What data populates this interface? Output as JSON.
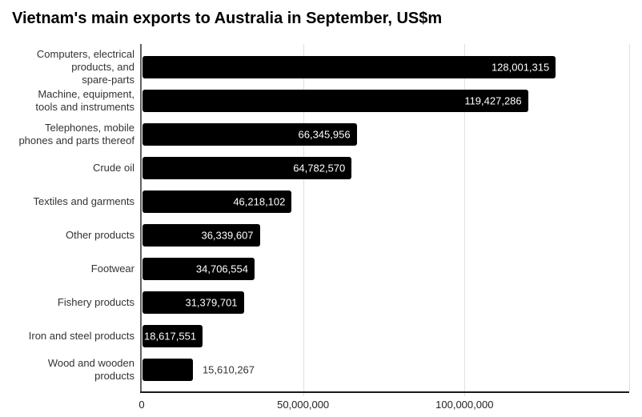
{
  "chart_data": {
    "type": "bar",
    "orientation": "horizontal",
    "title": "Vietnam's main exports to Australia in September, US$m",
    "categories": [
      "Computers, electrical products, and spare-parts",
      "Machine, equipment, tools and instruments",
      "Telephones, mobile phones and parts thereof",
      "Crude oil",
      "Textiles and garments",
      "Other products",
      "Footwear",
      "Fishery products",
      "Iron and steel products",
      "Wood and wooden products"
    ],
    "category_lines": [
      [
        "Computers, electrical",
        "products, and",
        "spare-parts"
      ],
      [
        "Machine, equipment,",
        "tools and instruments"
      ],
      [
        "Telephones, mobile",
        "phones and parts thereof"
      ],
      [
        "Crude oil"
      ],
      [
        "Textiles and garments"
      ],
      [
        "Other products"
      ],
      [
        "Footwear"
      ],
      [
        "Fishery products"
      ],
      [
        "Iron and steel products"
      ],
      [
        "Wood and wooden",
        "products"
      ]
    ],
    "values": [
      128001315,
      119427286,
      66345956,
      64782570,
      46218102,
      36339607,
      34706554,
      31379701,
      18617551,
      15610267
    ],
    "value_labels": [
      "128,001,315",
      "119,427,286",
      "66,345,956",
      "64,782,570",
      "46,218,102",
      "36,339,607",
      "34,706,554",
      "31,379,701",
      "18,617,551",
      "15,610,267"
    ],
    "value_label_position": [
      "inside",
      "inside",
      "inside",
      "inside",
      "inside",
      "inside",
      "inside",
      "inside",
      "inside",
      "outside"
    ],
    "xlabel": "",
    "ylabel": "",
    "xlim": [
      0,
      151000000
    ],
    "xticks": [
      {
        "value": 0,
        "label": "0"
      },
      {
        "value": 50000000,
        "label": "50,000,000"
      },
      {
        "value": 100000000,
        "label": "100,000,000"
      }
    ],
    "grid": true,
    "legend_position": "none",
    "colors": {
      "bar": "#000000",
      "value_label_inside": "#ffffff",
      "value_label_outside": "#333333",
      "category_label": "#333333",
      "tick_label": "#222222",
      "gridline": "#e0e0e0",
      "axis_y": "#616161",
      "axis_x": "#1a1a1a",
      "title": "#000000",
      "background": "#ffffff"
    }
  }
}
